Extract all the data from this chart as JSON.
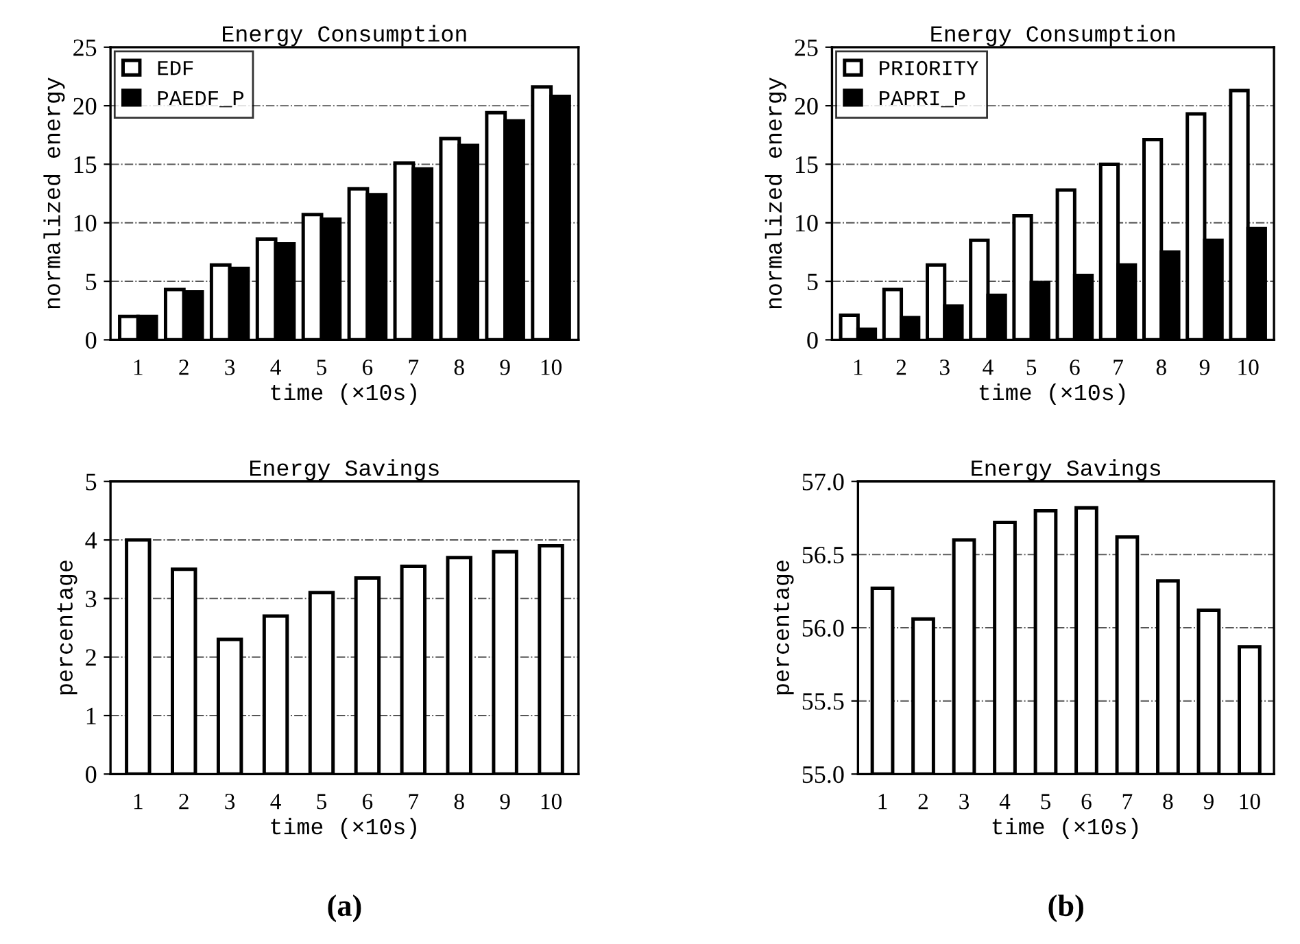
{
  "chart_data": [
    {
      "type": "bar",
      "title": "Energy Consumption",
      "xlabel": "time (×10s)",
      "ylabel": "normalized energy",
      "categories": [
        "1",
        "2",
        "3",
        "4",
        "5",
        "6",
        "7",
        "8",
        "9",
        "10"
      ],
      "series": [
        {
          "name": "EDF",
          "color": "#ffffff",
          "values": [
            2.0,
            4.3,
            6.4,
            8.6,
            10.7,
            12.9,
            15.1,
            17.2,
            19.4,
            21.6
          ]
        },
        {
          "name": "PAEDF_P",
          "color": "#000000",
          "values": [
            2.0,
            4.1,
            6.1,
            8.2,
            10.3,
            12.4,
            14.6,
            16.6,
            18.7,
            20.8
          ]
        }
      ],
      "ylim": [
        0,
        25
      ],
      "yticks": [
        0,
        5,
        10,
        15,
        20,
        25
      ],
      "grid": "y",
      "legend": "top left"
    },
    {
      "type": "bar",
      "title": "Energy Consumption",
      "xlabel": "time (×10s)",
      "ylabel": "normalized energy",
      "categories": [
        "1",
        "2",
        "3",
        "4",
        "5",
        "6",
        "7",
        "8",
        "9",
        "10"
      ],
      "series": [
        {
          "name": "PRIORITY",
          "color": "#ffffff",
          "values": [
            2.1,
            4.3,
            6.4,
            8.5,
            10.6,
            12.8,
            15.0,
            17.1,
            19.3,
            21.3
          ]
        },
        {
          "name": "PAPRI_P",
          "color": "#000000",
          "values": [
            0.9,
            1.9,
            2.9,
            3.8,
            4.9,
            5.5,
            6.4,
            7.5,
            8.5,
            9.5
          ]
        }
      ],
      "ylim": [
        0,
        25
      ],
      "yticks": [
        0,
        5,
        10,
        15,
        20,
        25
      ],
      "grid": "y",
      "legend": "top left"
    },
    {
      "type": "bar",
      "title": "Energy Savings",
      "xlabel": "time (×10s)",
      "ylabel": "percentage",
      "categories": [
        "1",
        "2",
        "3",
        "4",
        "5",
        "6",
        "7",
        "8",
        "9",
        "10"
      ],
      "series": [
        {
          "color": "#ffffff",
          "values": [
            4.0,
            3.5,
            2.3,
            2.7,
            3.1,
            3.35,
            3.55,
            3.7,
            3.8,
            3.9
          ]
        }
      ],
      "ylim": [
        0,
        5
      ],
      "yticks": [
        0,
        1,
        2,
        3,
        4,
        5
      ],
      "grid": "y",
      "annotations": [
        "(a)"
      ]
    },
    {
      "type": "bar",
      "title": "Energy Savings",
      "xlabel": "time (×10s)",
      "ylabel": "percentage",
      "categories": [
        "1",
        "2",
        "3",
        "4",
        "5",
        "6",
        "7",
        "8",
        "9",
        "10"
      ],
      "series": [
        {
          "color": "#ffffff",
          "values": [
            56.27,
            56.06,
            56.6,
            56.72,
            56.8,
            56.82,
            56.62,
            56.32,
            56.12,
            55.87
          ]
        }
      ],
      "ylim": [
        55.0,
        57.0
      ],
      "yticks": [
        {
          "value": 55.0,
          "label": "55.0"
        },
        {
          "value": 55.5,
          "label": "55.5"
        },
        {
          "value": 56.0,
          "label": "56.0"
        },
        {
          "value": 56.5,
          "label": "56.5"
        },
        {
          "value": 57.0,
          "label": "57.0"
        }
      ],
      "grid": "y",
      "annotations": [
        "(b)"
      ]
    }
  ]
}
